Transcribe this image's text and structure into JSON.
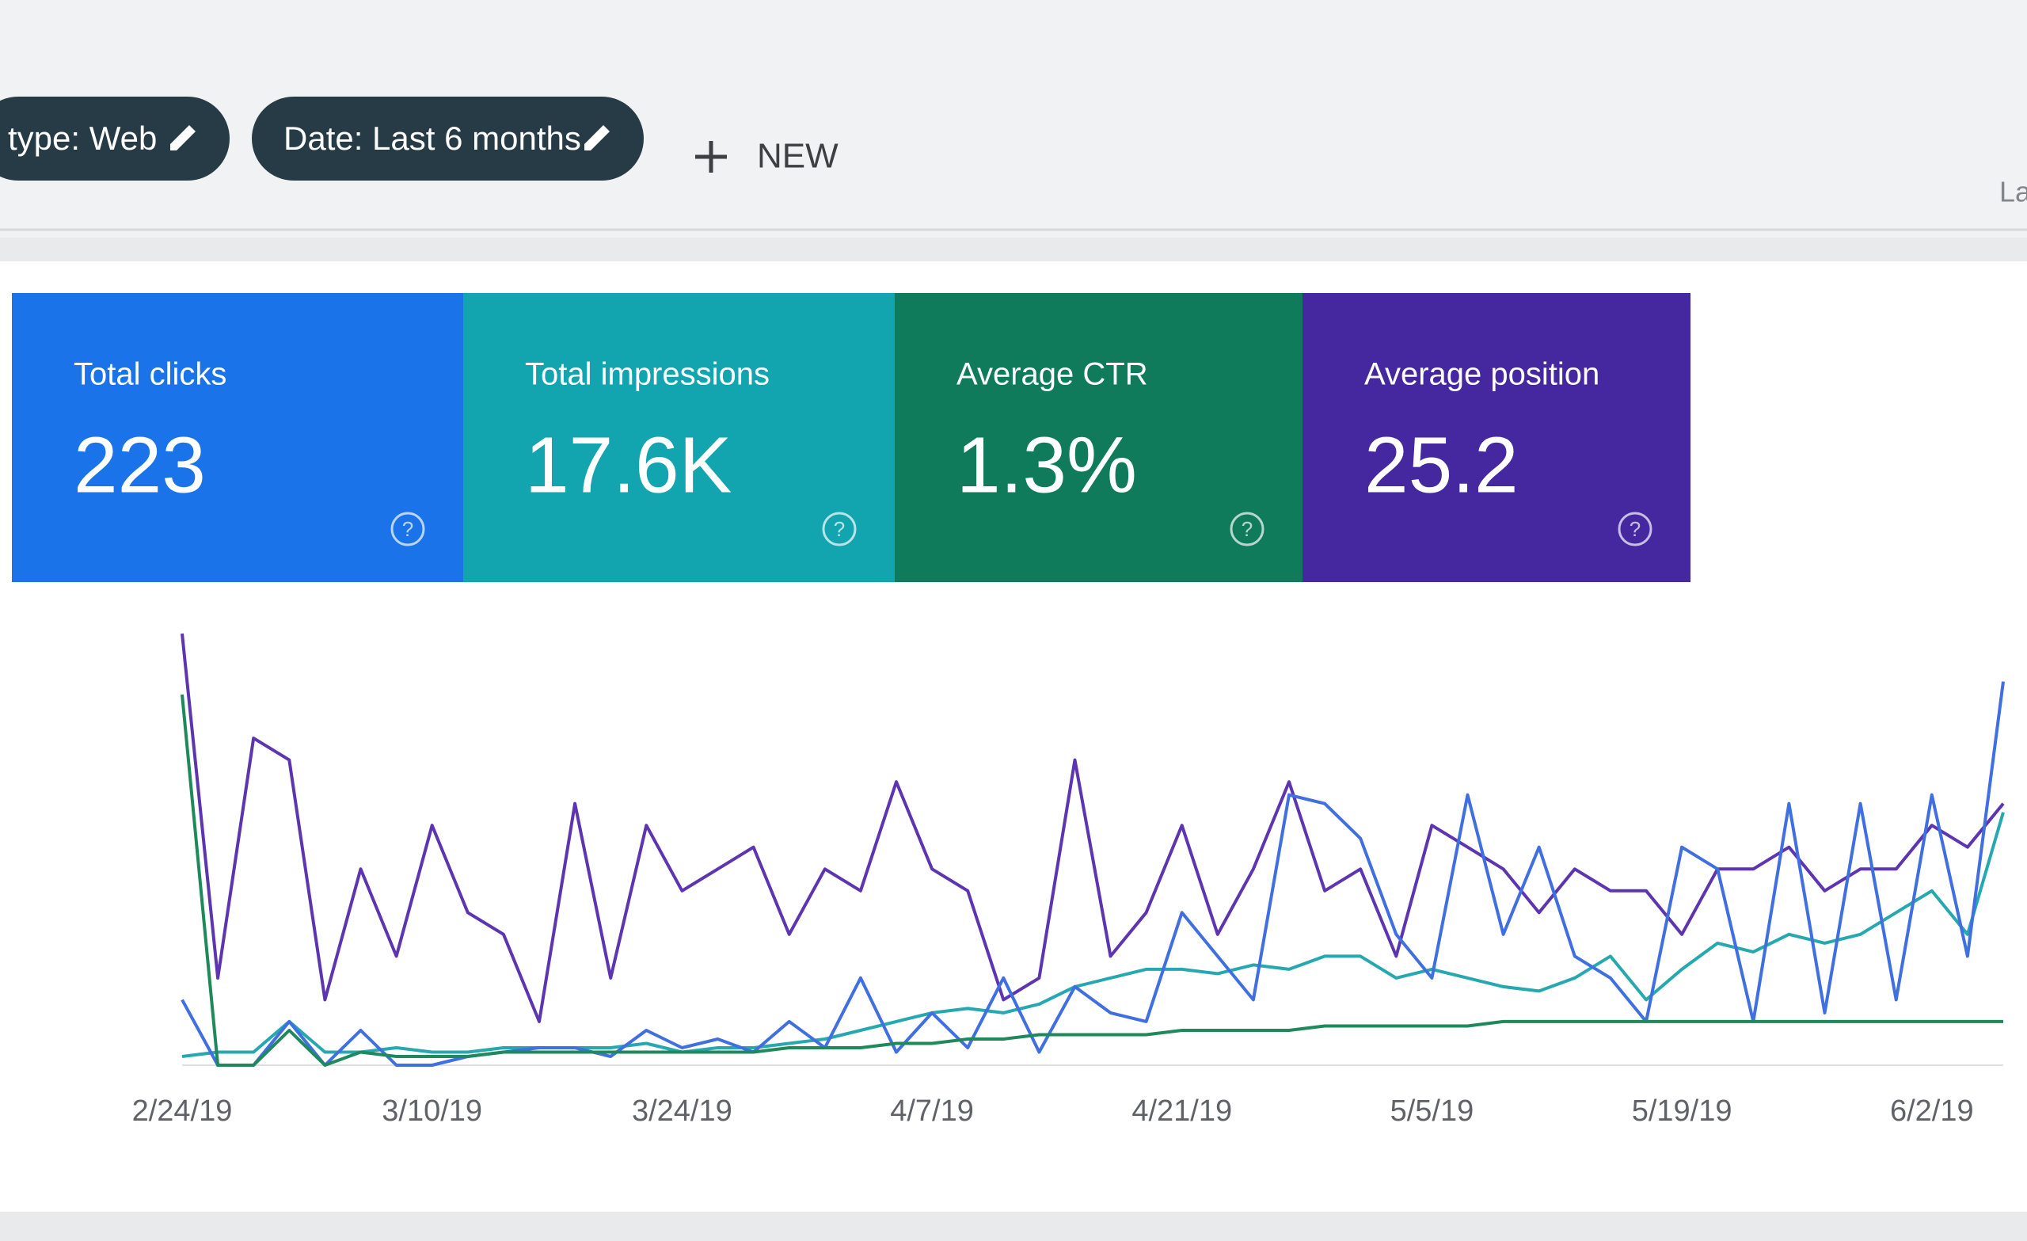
{
  "filters": [
    {
      "label": "type: Web"
    },
    {
      "label": "Date: Last 6 months"
    }
  ],
  "new_button": "NEW",
  "corner_text": "La",
  "metrics": [
    {
      "label": "Total clicks",
      "value": "223",
      "color": "#1a73e8"
    },
    {
      "label": "Total impressions",
      "value": "17.6K",
      "color": "#12a4af"
    },
    {
      "label": "Average CTR",
      "value": "1.3%",
      "color": "#0f7b5a"
    },
    {
      "label": "Average position",
      "value": "25.2",
      "color": "#4527a0"
    }
  ],
  "chart_data": {
    "type": "line",
    "x": [
      "2/24/19",
      null,
      null,
      null,
      null,
      null,
      null,
      "3/10/19",
      null,
      null,
      null,
      null,
      null,
      null,
      "3/24/19",
      null,
      null,
      null,
      null,
      null,
      null,
      "4/7/19",
      null,
      null,
      null,
      null,
      null,
      null,
      "4/21/19",
      null,
      null,
      null,
      null,
      null,
      null,
      "5/5/19",
      null,
      null,
      null,
      null,
      null,
      null,
      "5/19/19",
      null,
      null,
      null,
      null,
      null,
      null,
      "6/2/19",
      null,
      null
    ],
    "series": [
      {
        "color": "#5e35b1",
        "values": [
          99,
          20,
          75,
          70,
          15,
          45,
          25,
          55,
          35,
          30,
          10,
          60,
          20,
          55,
          40,
          45,
          50,
          30,
          45,
          40,
          65,
          45,
          40,
          15,
          20,
          70,
          25,
          35,
          55,
          30,
          45,
          65,
          40,
          45,
          25,
          55,
          50,
          45,
          35,
          45,
          40,
          40,
          30,
          45,
          45,
          50,
          40,
          45,
          45,
          55,
          50,
          60
        ]
      },
      {
        "color": "#26a8b0",
        "values": [
          2,
          3,
          3,
          10,
          3,
          3,
          4,
          3,
          3,
          4,
          4,
          4,
          4,
          5,
          3,
          4,
          4,
          5,
          6,
          8,
          10,
          12,
          13,
          12,
          14,
          18,
          20,
          22,
          22,
          21,
          23,
          22,
          25,
          25,
          20,
          22,
          20,
          18,
          17,
          20,
          25,
          15,
          22,
          28,
          26,
          30,
          28,
          30,
          35,
          40,
          30,
          58
        ]
      },
      {
        "color": "#3f6fe0",
        "values": [
          15,
          0,
          0,
          10,
          0,
          8,
          0,
          0,
          2,
          3,
          4,
          4,
          2,
          8,
          4,
          6,
          3,
          10,
          4,
          20,
          3,
          12,
          4,
          20,
          3,
          18,
          12,
          10,
          35,
          25,
          15,
          62,
          60,
          52,
          30,
          20,
          62,
          30,
          50,
          25,
          20,
          10,
          50,
          45,
          10,
          60,
          12,
          60,
          15,
          62,
          25,
          88
        ]
      },
      {
        "color": "#1e8a5c",
        "values": [
          85,
          0,
          0,
          8,
          0,
          3,
          2,
          2,
          2,
          3,
          3,
          3,
          3,
          3,
          3,
          3,
          3,
          4,
          4,
          4,
          5,
          5,
          6,
          6,
          7,
          7,
          7,
          7,
          8,
          8,
          8,
          8,
          9,
          9,
          9,
          9,
          9,
          10,
          10,
          10,
          10,
          10,
          10,
          10,
          10,
          10,
          10,
          10,
          10,
          10,
          10,
          10
        ]
      }
    ]
  }
}
